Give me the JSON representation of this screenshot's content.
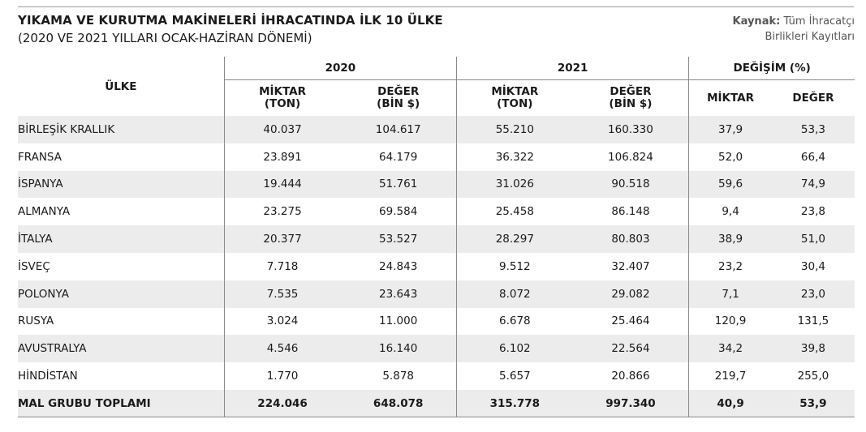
{
  "header": {
    "title": "YIKAMA VE KURUTMA MAKİNELERİ İHRACATINDA İLK 10 ÜLKE",
    "subtitle": "(2020 VE 2021 YILLARI OCAK-HAZİRAN DÖNEMİ)",
    "source_label": "Kaynak:",
    "source_line1": "Tüm İhracatçı",
    "source_line2": "Birlikleri Kayıtları"
  },
  "table": {
    "country_header": "ÜLKE",
    "group_headers": [
      "2020",
      "2021",
      "DEĞİŞİM (%)"
    ],
    "sub_headers": [
      [
        "MİKTAR",
        "(TON)"
      ],
      [
        "DEĞER",
        "(BİN $)"
      ],
      [
        "MİKTAR",
        "(TON)"
      ],
      [
        "DEĞER",
        "(BİN $)"
      ],
      [
        "MİKTAR",
        ""
      ],
      [
        "DEĞER",
        ""
      ]
    ]
  },
  "chart_data": {
    "type": "table",
    "title": "YIKAMA VE KURUTMA MAKİNELERİ İHRACATINDA İLK 10 ÜLKE",
    "subtitle": "(2020 VE 2021 YILLARI OCAK-HAZİRAN DÖNEMİ)",
    "columns": [
      "ÜLKE",
      "2020 MİKTAR (TON)",
      "2020 DEĞER (BİN $)",
      "2021 MİKTAR (TON)",
      "2021 DEĞER (BİN $)",
      "DEĞİŞİM (%) MİKTAR",
      "DEĞİŞİM (%) DEĞER"
    ],
    "rows": [
      [
        "BİRLEŞİK KRALLIK",
        "40.037",
        "104.617",
        "55.210",
        "160.330",
        "37,9",
        "53,3"
      ],
      [
        "FRANSA",
        "23.891",
        "64.179",
        "36.322",
        "106.824",
        "52,0",
        "66,4"
      ],
      [
        "İSPANYA",
        "19.444",
        "51.761",
        "31.026",
        "90.518",
        "59,6",
        "74,9"
      ],
      [
        "ALMANYA",
        "23.275",
        "69.584",
        "25.458",
        "86.148",
        "9,4",
        "23,8"
      ],
      [
        "İTALYA",
        "20.377",
        "53.527",
        "28.297",
        "80.803",
        "38,9",
        "51,0"
      ],
      [
        "İSVEÇ",
        "7.718",
        "24.843",
        "9.512",
        "32.407",
        "23,2",
        "30,4"
      ],
      [
        "POLONYA",
        "7.535",
        "23.643",
        "8.072",
        "29.082",
        "7,1",
        "23,0"
      ],
      [
        "RUSYA",
        "3.024",
        "11.000",
        "6.678",
        "25.464",
        "120,9",
        "131,5"
      ],
      [
        "AVUSTRALYA",
        "4.546",
        "16.140",
        "6.102",
        "22.564",
        "34,2",
        "39,8"
      ],
      [
        "HİNDİSTAN",
        "1.770",
        "5.878",
        "5.657",
        "20.866",
        "219,7",
        "255,0"
      ]
    ],
    "total_row": [
      "MAL GRUBU TOPLAMI",
      "224.046",
      "648.078",
      "315.778",
      "997.340",
      "40,9",
      "53,9"
    ]
  }
}
